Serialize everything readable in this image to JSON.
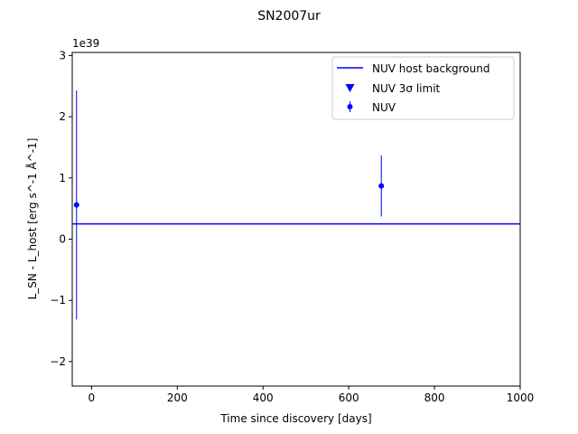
{
  "chart_data": {
    "type": "scatter",
    "title": "SN2007ur",
    "xlabel": "Time since discovery [days]",
    "ylabel": "L_SN - L_host [erg s^-1 Å^-1]",
    "offset_label": "1e39",
    "xlim": [
      -45,
      1000
    ],
    "ylim": [
      -2.4,
      3.05
    ],
    "xticks": [
      0,
      200,
      400,
      600,
      800,
      1000
    ],
    "xtick_labels": [
      "0",
      "200",
      "400",
      "600",
      "800",
      "1000"
    ],
    "yticks": [
      -2,
      -1,
      0,
      1,
      2,
      3
    ],
    "ytick_labels": [
      "−2",
      "−1",
      "0",
      "1",
      "2",
      "3"
    ],
    "grid": false,
    "legend_position": "top-right",
    "legend": [
      {
        "label": "NUV host background",
        "marker": "line"
      },
      {
        "label": "NUV 3σ limit",
        "marker": "triangle-down"
      },
      {
        "label": "NUV",
        "marker": "errorbar-point"
      }
    ],
    "host_background": {
      "y": 0.25,
      "color": "#0000ff"
    },
    "series": [
      {
        "name": "NUV",
        "color": "#0000ff",
        "points": [
          {
            "x": -35,
            "y": 0.56,
            "yerr": 1.87
          },
          {
            "x": 676,
            "y": 0.87,
            "yerr": 0.5
          }
        ]
      }
    ],
    "limits": []
  }
}
